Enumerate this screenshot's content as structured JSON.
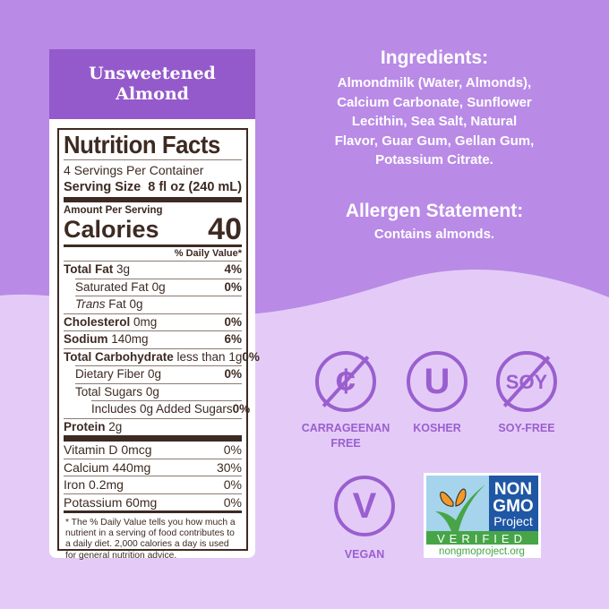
{
  "header": {
    "flavor": "Unsweetened Almond"
  },
  "nutrition": {
    "title": "Nutrition Facts",
    "servings": "4 Servings Per Container",
    "serving_size_label": "Serving Size",
    "serving_size": "8 fl oz (240 mL)",
    "amount_per_serving": "Amount Per Serving",
    "calories_label": "Calories",
    "calories": "40",
    "dv_header": "% Daily Value*",
    "rows": [
      {
        "name": "Total Fat",
        "amount": "3g",
        "dv": "4%",
        "bold": true,
        "indent": 0
      },
      {
        "name": "Saturated Fat",
        "amount": "0g",
        "dv": "0%",
        "bold": false,
        "indent": 1
      },
      {
        "name": "Trans",
        "amount": "Fat 0g",
        "dv": "",
        "bold": false,
        "indent": 1,
        "italic": true
      },
      {
        "name": "Cholesterol",
        "amount": "0mg",
        "dv": "0%",
        "bold": true,
        "indent": 0
      },
      {
        "name": "Sodium",
        "amount": "140mg",
        "dv": "6%",
        "bold": true,
        "indent": 0
      },
      {
        "name": "Total Carbohydrate",
        "amount": "less than 1g",
        "dv": "0%",
        "bold": true,
        "indent": 0
      },
      {
        "name": "Dietary Fiber",
        "amount": "0g",
        "dv": "0%",
        "bold": false,
        "indent": 1
      },
      {
        "name": "Total Sugars",
        "amount": "0g",
        "dv": "",
        "bold": false,
        "indent": 1
      },
      {
        "name": "Includes 0g Added Sugars",
        "amount": "",
        "dv": "0%",
        "bold": false,
        "indent": 2
      },
      {
        "name": "Protein",
        "amount": "2g",
        "dv": "",
        "bold": true,
        "indent": 0
      }
    ],
    "vitamins": [
      {
        "name": "Vitamin D 0mcg",
        "dv": "0%"
      },
      {
        "name": "Calcium 440mg",
        "dv": "30%"
      },
      {
        "name": "Iron 0.2mg",
        "dv": "0%"
      },
      {
        "name": "Potassium 60mg",
        "dv": "0%"
      }
    ],
    "footnote": "* The % Daily Value tells you how much a nutrient in a serving of food contributes to a daily diet. 2,000 calories a day is used for general nutrition advice."
  },
  "ingredients": {
    "title": "Ingredients:",
    "lines": [
      "Almondmilk (Water, Almonds),",
      "Calcium Carbonate, Sunflower",
      "Lecithin, Sea Salt, Natural",
      "Flavor, Guar Gum, Gellan Gum,",
      "Potassium Citrate."
    ]
  },
  "allergen": {
    "title": "Allergen Statement:",
    "text": "Contains almonds."
  },
  "badges": [
    {
      "symbol": "¢",
      "label1": "CARRAGEENAN",
      "label2": "FREE",
      "icon": "carrageenan-free-icon"
    },
    {
      "symbol": "U",
      "label1": "KOSHER",
      "label2": "",
      "icon": "kosher-icon"
    },
    {
      "symbol": "SØY",
      "label1": "SOY-FREE",
      "label2": "",
      "icon": "soy-free-icon"
    },
    {
      "symbol": "V",
      "label1": "VEGAN",
      "label2": "",
      "icon": "vegan-icon"
    }
  ],
  "nongmo": {
    "line1": "NON",
    "line2": "GMO",
    "line3": "Project",
    "verified": "VERIFIED",
    "url": "nongmoproject.org"
  },
  "colors": {
    "top_bg": "#b98ae6",
    "bottom_bg": "#e4cbf7",
    "accent": "#9459cb",
    "label_brown": "#3d2a22",
    "badge": "#9a5fcf"
  }
}
